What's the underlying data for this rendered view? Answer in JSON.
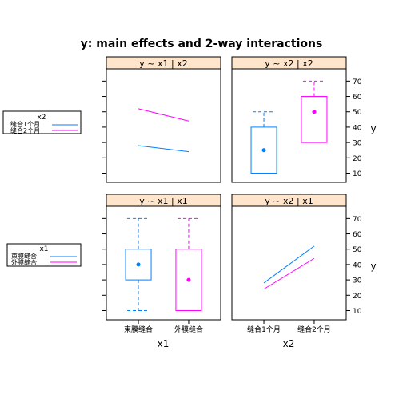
{
  "title": "y: main effects and 2-way interactions",
  "colors": {
    "blue": "#0080ff",
    "magenta": "#ff00ff",
    "strip_bg": "#ffe5cc",
    "frame": "#000000"
  },
  "legends": [
    {
      "title": "x2",
      "entries": [
        "缝合1个月",
        "缝合2个月"
      ]
    },
    {
      "title": "x1",
      "entries": [
        "束膜缝合",
        "外膜缝合"
      ]
    }
  ],
  "chart_data": {
    "type": "lattice",
    "y_axis": {
      "label": "y",
      "ticks": [
        10,
        20,
        30,
        40,
        50,
        60,
        70
      ],
      "lim": [
        4,
        78
      ],
      "grid": false
    },
    "x_axis_labels": [
      "x1",
      "x2"
    ],
    "panels": [
      {
        "strip": "y ~ x1 | x2",
        "type": "line",
        "categories": [
          "束膜缝合",
          "外膜缝合"
        ],
        "series": [
          {
            "name": "缝合1个月",
            "values": [
              28,
              24
            ]
          },
          {
            "name": "缝合2个月",
            "values": [
              52,
              44
            ]
          }
        ]
      },
      {
        "strip": "y ~ x2 | x2",
        "type": "box",
        "categories": [
          "缝合1个月",
          "缝合2个月"
        ],
        "boxes": [
          {
            "category": "缝合1个月",
            "min": 10,
            "q1": 10,
            "median": 25,
            "q3": 40,
            "max": 50
          },
          {
            "category": "缝合2个月",
            "min": 30,
            "q1": 30,
            "median": 50,
            "q3": 60,
            "max": 70
          }
        ]
      },
      {
        "strip": "y ~ x1 | x1",
        "type": "box",
        "categories": [
          "束膜缝合",
          "外膜缝合"
        ],
        "boxes": [
          {
            "category": "束膜缝合",
            "min": 10,
            "q1": 30,
            "median": 40,
            "q3": 50,
            "max": 70
          },
          {
            "category": "外膜缝合",
            "min": 10,
            "q1": 10,
            "median": 30,
            "q3": 50,
            "max": 70
          }
        ]
      },
      {
        "strip": "y ~ x2 | x1",
        "type": "line",
        "categories": [
          "缝合1个月",
          "缝合2个月"
        ],
        "series": [
          {
            "name": "束膜缝合",
            "values": [
              28,
              52
            ]
          },
          {
            "name": "外膜缝合",
            "values": [
              24,
              44
            ]
          }
        ]
      }
    ]
  }
}
